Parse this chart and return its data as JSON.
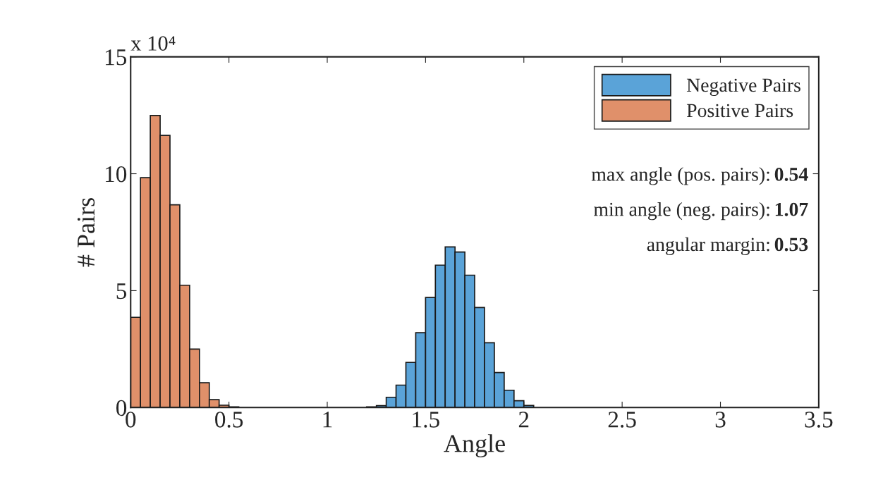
{
  "chart_data": {
    "type": "histogram",
    "xlabel": "Angle",
    "ylabel": "# Pairs",
    "xlim": [
      0,
      3.5
    ],
    "xticks": [
      0,
      0.5,
      1,
      1.5,
      2,
      2.5,
      3,
      3.5
    ],
    "ylim": [
      0,
      15
    ],
    "yticks": [
      0,
      5,
      10,
      15
    ],
    "legend": "top right",
    "grid": false,
    "annotations": [
      "x 10⁴",
      "max angle (pos. pairs): 0.54",
      "min angle (neg. pairs): 1.07",
      "angular margin: 0.53"
    ],
    "bins": [
      0,
      0.05,
      0.1,
      0.15,
      0.2,
      0.25,
      0.3,
      0.35,
      0.4,
      0.45,
      0.5,
      0.55,
      0.6,
      0.65,
      0.7,
      0.75,
      0.8,
      0.85,
      0.9,
      0.95,
      1.0,
      1.05,
      1.1,
      1.15,
      1.2,
      1.25,
      1.3,
      1.35,
      1.4,
      1.45,
      1.5,
      1.55,
      1.6,
      1.65,
      1.7,
      1.75,
      1.8,
      1.85,
      1.9,
      1.95,
      2.0,
      2.05
    ],
    "series": [
      {
        "name": "Negative Pairs",
        "color": "#5aa3d8",
        "values": [
          0,
          0,
          0,
          0,
          0,
          0,
          0,
          0,
          0,
          0,
          0,
          0,
          0,
          0,
          0,
          0,
          0,
          0,
          0,
          0,
          0,
          0,
          0,
          0,
          0.03,
          0.08,
          0.44,
          0.96,
          1.93,
          3.2,
          4.71,
          6.09,
          6.87,
          6.65,
          5.66,
          4.28,
          2.77,
          1.5,
          0.74,
          0.29,
          0.09
        ]
      },
      {
        "name": "Positive Pairs",
        "color": "#e0906a",
        "values": [
          3.86,
          9.83,
          12.49,
          11.64,
          8.67,
          5.23,
          2.5,
          1.06,
          0.34,
          0.1,
          0.03,
          0,
          0,
          0,
          0,
          0,
          0,
          0,
          0,
          0,
          0,
          0,
          0,
          0,
          0,
          0,
          0,
          0,
          0,
          0,
          0,
          0,
          0,
          0,
          0,
          0,
          0,
          0,
          0,
          0,
          0
        ]
      }
    ]
  }
}
